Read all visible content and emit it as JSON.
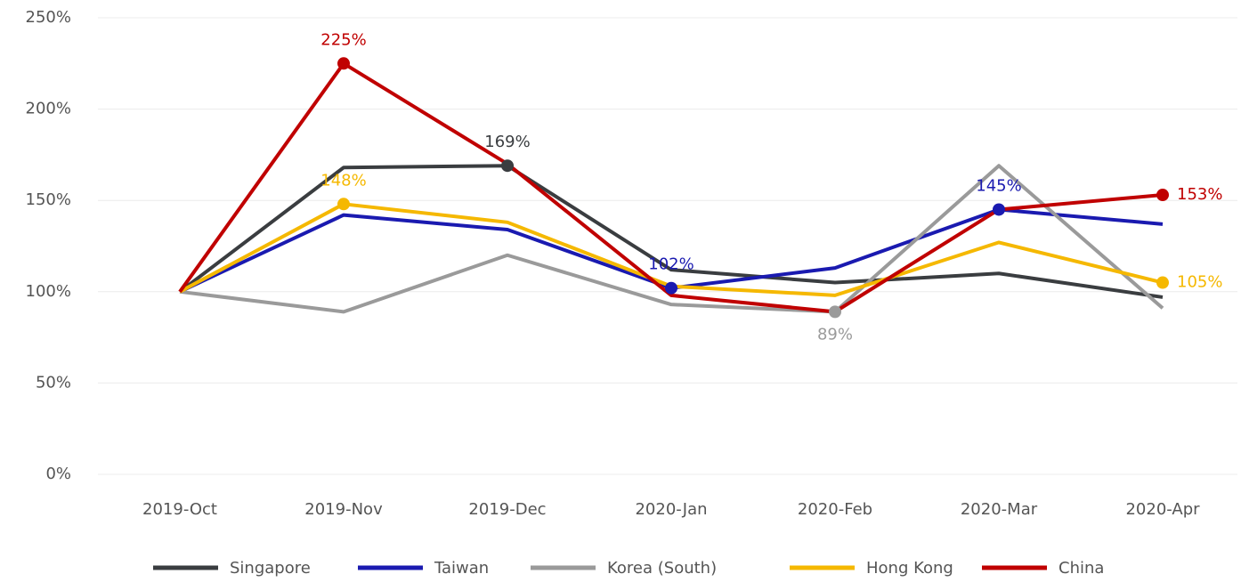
{
  "chart_data": {
    "type": "line",
    "categories": [
      "2019-Oct",
      "2019-Nov",
      "2019-Dec",
      "2020-Jan",
      "2020-Feb",
      "2020-Mar",
      "2020-Apr"
    ],
    "series": [
      {
        "name": "Singapore",
        "color": "#3a3d40",
        "values": [
          100,
          168,
          169,
          112,
          105,
          110,
          97
        ],
        "value_labels": [
          null,
          null,
          "169%",
          null,
          null,
          null,
          null
        ]
      },
      {
        "name": "Taiwan",
        "color": "#1a1ab0",
        "values": [
          100,
          142,
          134,
          102,
          113,
          145,
          137
        ],
        "value_labels": [
          null,
          null,
          null,
          "102%",
          null,
          "145%",
          null
        ]
      },
      {
        "name": "Korea (South)",
        "color": "#9a9a9a",
        "values": [
          100,
          89,
          120,
          93,
          89,
          169,
          91
        ],
        "value_labels": [
          null,
          null,
          null,
          null,
          "89%",
          null,
          null
        ]
      },
      {
        "name": "Hong Kong",
        "color": "#f5b800",
        "values": [
          100,
          148,
          138,
          103,
          98,
          127,
          105
        ],
        "value_labels": [
          null,
          "148%",
          null,
          null,
          null,
          null,
          "105%"
        ]
      },
      {
        "name": "China",
        "color": "#c00000",
        "values": [
          100,
          225,
          170,
          98,
          89,
          145,
          153
        ],
        "value_labels": [
          null,
          "225%",
          null,
          null,
          null,
          null,
          "153%"
        ]
      }
    ],
    "ylim": [
      0,
      250
    ],
    "yticks": [
      {
        "value": 0,
        "label": "0%"
      },
      {
        "value": 50,
        "label": "50%"
      },
      {
        "value": 100,
        "label": "100%"
      },
      {
        "value": 150,
        "label": "150%"
      },
      {
        "value": 200,
        "label": "200%"
      },
      {
        "value": 250,
        "label": "250%"
      }
    ],
    "grid": true,
    "legend": "bottom"
  }
}
